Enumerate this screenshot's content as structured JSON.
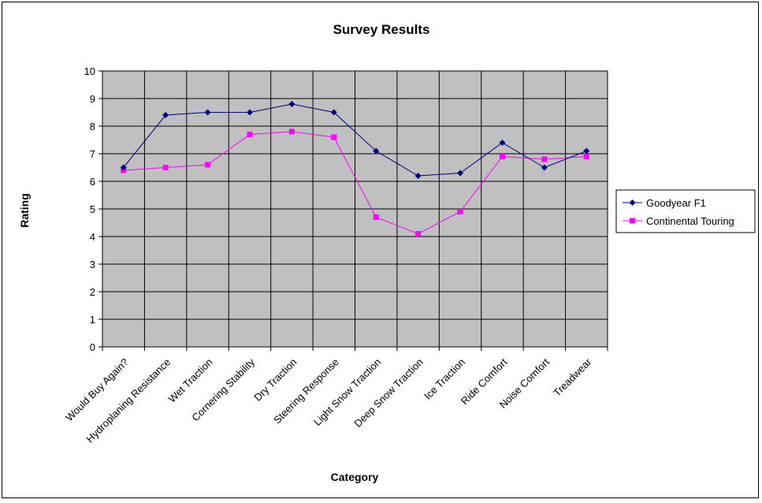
{
  "chart_data": {
    "type": "line",
    "title": "Survey Results",
    "xlabel": "Category",
    "ylabel": "Rating",
    "ylim": [
      0,
      10
    ],
    "ytick_step": 1,
    "grid": true,
    "plot_background": "#c0c0c0",
    "legend_position": "right",
    "categories": [
      "Would Buy Again?",
      "Hydroplaning Resistance",
      "Wet Traction",
      "Cornering Stability",
      "Dry Traction",
      "Steering Response",
      "Light Snow Traction",
      "Deep Snow Traction",
      "Ice Traction",
      "Ride Comfort",
      "Noise Comfort",
      "Treadwear"
    ],
    "series": [
      {
        "name": "Goodyear F1",
        "color": "#000080",
        "marker": "diamond",
        "values": [
          6.5,
          8.4,
          8.5,
          8.5,
          8.8,
          8.5,
          7.1,
          6.2,
          6.3,
          7.4,
          6.5,
          7.1
        ]
      },
      {
        "name": "Continental Touring",
        "color": "#ff00ff",
        "marker": "square",
        "values": [
          6.4,
          6.5,
          6.6,
          7.7,
          7.8,
          7.6,
          4.7,
          4.1,
          4.9,
          6.9,
          6.8,
          6.9
        ]
      }
    ]
  }
}
